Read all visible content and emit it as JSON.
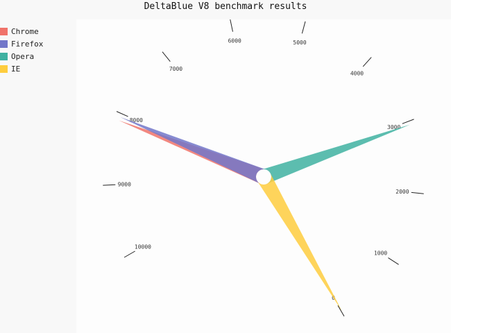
{
  "chart_data": {
    "type": "gauge",
    "title": "DeltaBlue V8 benchmark results",
    "min": 0,
    "max": 10000,
    "tick_labels": [
      "0",
      "1000",
      "2000",
      "3000",
      "4000",
      "5000",
      "6000",
      "7000",
      "8000",
      "9000",
      "10000"
    ],
    "series": [
      {
        "name": "Chrome",
        "value": 8100,
        "color": "#f0736a"
      },
      {
        "name": "Firefox",
        "value": 8050,
        "color": "#7277c9"
      },
      {
        "name": "Opera",
        "value": 2950,
        "color": "#3fb1a1"
      },
      {
        "name": "IE",
        "value": 10,
        "color": "#fecd3e"
      }
    ],
    "legend_position": "left"
  }
}
